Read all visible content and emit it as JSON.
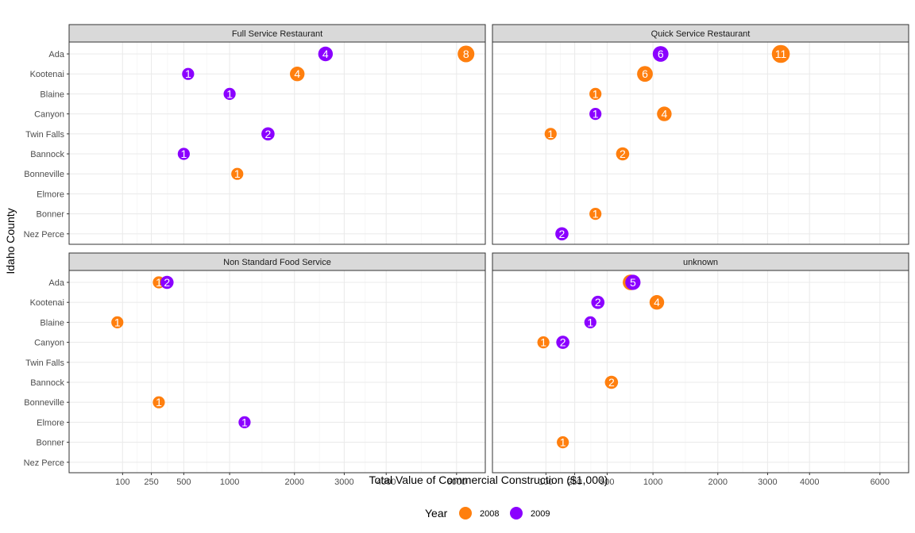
{
  "chart_data": {
    "type": "scatter",
    "x_scale": "sqrt",
    "xlabel": "Total Value of Commercial Construction ($1,000)",
    "ylabel": "Idaho County",
    "xticks": [
      100,
      250,
      500,
      1000,
      2000,
      3000,
      4000,
      6000
    ],
    "xlim": [
      0,
      6800
    ],
    "categories": [
      "Ada",
      "Kootenai",
      "Blaine",
      "Canyon",
      "Twin Falls",
      "Bannock",
      "Bonneville",
      "Elmore",
      "Bonner",
      "Nez Perce"
    ],
    "legend": {
      "title": "Year",
      "position": "bottom",
      "entries": [
        {
          "label": "2008",
          "color": "#FF7F0E"
        },
        {
          "label": "2009",
          "color": "#8B00FF"
        }
      ]
    },
    "panels": [
      {
        "title": "Full Service Restaurant",
        "points": [
          {
            "county": "Ada",
            "year": "2008",
            "x": 6300,
            "label": "8"
          },
          {
            "county": "Ada",
            "year": "2009",
            "x": 2600,
            "label": "4"
          },
          {
            "county": "Kootenai",
            "year": "2008",
            "x": 2050,
            "label": "4"
          },
          {
            "county": "Kootenai",
            "year": "2009",
            "x": 540,
            "label": "1"
          },
          {
            "county": "Blaine",
            "year": "2009",
            "x": 1000,
            "label": "1"
          },
          {
            "county": "Twin Falls",
            "year": "2009",
            "x": 1550,
            "label": "2"
          },
          {
            "county": "Bannock",
            "year": "2009",
            "x": 500,
            "label": "1"
          },
          {
            "county": "Bonneville",
            "year": "2008",
            "x": 1100,
            "label": "1"
          }
        ]
      },
      {
        "title": "Quick Service Restaurant",
        "points": [
          {
            "county": "Ada",
            "year": "2008",
            "x": 3300,
            "label": "11"
          },
          {
            "county": "Ada",
            "year": "2009",
            "x": 1100,
            "label": "6"
          },
          {
            "county": "Kootenai",
            "year": "2008",
            "x": 900,
            "label": "6"
          },
          {
            "county": "Blaine",
            "year": "2008",
            "x": 400,
            "label": "1"
          },
          {
            "county": "Canyon",
            "year": "2008",
            "x": 1150,
            "label": "4"
          },
          {
            "county": "Canyon",
            "year": "2009",
            "x": 400,
            "label": "1"
          },
          {
            "county": "Twin Falls",
            "year": "2008",
            "x": 120,
            "label": "1"
          },
          {
            "county": "Bannock",
            "year": "2008",
            "x": 650,
            "label": "2"
          },
          {
            "county": "Bonner",
            "year": "2008",
            "x": 400,
            "label": "1"
          },
          {
            "county": "Nez Perce",
            "year": "2009",
            "x": 175,
            "label": "2"
          }
        ]
      },
      {
        "title": "Non Standard Food Service",
        "points": [
          {
            "county": "Ada",
            "year": "2008",
            "x": 300,
            "label": "1"
          },
          {
            "county": "Ada",
            "year": "2009",
            "x": 360,
            "label": "2"
          },
          {
            "county": "Blaine",
            "year": "2008",
            "x": 80,
            "label": "1"
          },
          {
            "county": "Bonneville",
            "year": "2008",
            "x": 300,
            "label": "1"
          },
          {
            "county": "Elmore",
            "year": "2009",
            "x": 1200,
            "label": "1"
          }
        ]
      },
      {
        "title": "unknown",
        "points": [
          {
            "county": "Ada",
            "year": "2008",
            "x": 735,
            "label": "6"
          },
          {
            "county": "Ada",
            "year": "2009",
            "x": 760,
            "label": "5"
          },
          {
            "county": "Kootenai",
            "year": "2008",
            "x": 1050,
            "label": "4"
          },
          {
            "county": "Kootenai",
            "year": "2009",
            "x": 420,
            "label": "2"
          },
          {
            "county": "Blaine",
            "year": "2009",
            "x": 360,
            "label": "1"
          },
          {
            "county": "Canyon",
            "year": "2008",
            "x": 90,
            "label": "1"
          },
          {
            "county": "Canyon",
            "year": "2009",
            "x": 180,
            "label": "2"
          },
          {
            "county": "Bannock",
            "year": "2008",
            "x": 540,
            "label": "2"
          },
          {
            "county": "Bonner",
            "year": "2008",
            "x": 180,
            "label": "1"
          }
        ]
      }
    ]
  }
}
